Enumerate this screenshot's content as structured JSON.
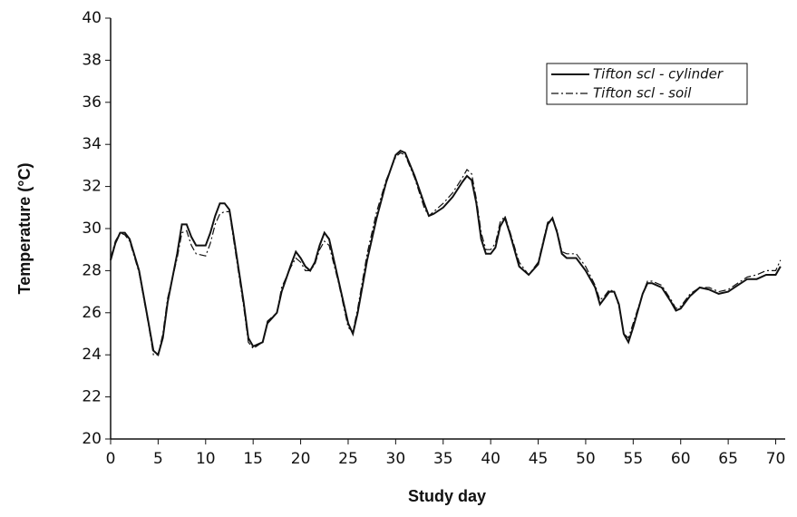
{
  "chart_data": {
    "type": "line",
    "x_label": "Study day",
    "y_label": "Temperature (°C)",
    "x": [
      0,
      0.5,
      1,
      1.5,
      2,
      3,
      4,
      4.5,
      5,
      5.5,
      6,
      7,
      7.5,
      8,
      8.5,
      9,
      10,
      10.5,
      11,
      11.5,
      12,
      12.5,
      13,
      14,
      14.5,
      15,
      16,
      16.5,
      17.5,
      18,
      19,
      19.5,
      20,
      20.5,
      21,
      21.5,
      22,
      22.5,
      23,
      24,
      25,
      25.5,
      26,
      27,
      28,
      29,
      30,
      30.5,
      31,
      32,
      33,
      33.5,
      34,
      35,
      36,
      37,
      37.5,
      38,
      38.5,
      39,
      39.5,
      40,
      40.5,
      41,
      41.5,
      42,
      43,
      44,
      45,
      46,
      46.5,
      47,
      47.5,
      48,
      49,
      50,
      51,
      51.5,
      52,
      52.5,
      53,
      53.5,
      54,
      54.5,
      55,
      56,
      56.5,
      57,
      58,
      59,
      59.5,
      60,
      61,
      62,
      63,
      64,
      65,
      66,
      67,
      68,
      69,
      70,
      70.5
    ],
    "series": [
      {
        "name": "Tifton scl - cylinder",
        "color": "#111111",
        "dash": "solid",
        "values": [
          28.5,
          29.3,
          29.8,
          29.8,
          29.5,
          28.0,
          25.5,
          24.2,
          24.0,
          24.8,
          26.5,
          28.8,
          30.2,
          30.2,
          29.6,
          29.2,
          29.2,
          29.8,
          30.6,
          31.2,
          31.2,
          30.9,
          29.5,
          26.5,
          24.8,
          24.4,
          24.6,
          25.5,
          26.0,
          27.0,
          28.3,
          28.9,
          28.6,
          28.2,
          28.0,
          28.4,
          29.2,
          29.8,
          29.5,
          27.5,
          25.5,
          25.0,
          26.0,
          28.5,
          30.5,
          32.2,
          33.5,
          33.7,
          33.6,
          32.5,
          31.2,
          30.6,
          30.7,
          31.0,
          31.5,
          32.2,
          32.5,
          32.3,
          31.2,
          29.5,
          28.8,
          28.8,
          29.1,
          30.1,
          30.5,
          29.8,
          28.2,
          27.8,
          28.3,
          30.2,
          30.5,
          29.8,
          28.8,
          28.6,
          28.6,
          28.0,
          27.2,
          26.4,
          26.7,
          27.0,
          27.0,
          26.4,
          25.0,
          24.6,
          25.3,
          26.9,
          27.4,
          27.4,
          27.2,
          26.5,
          26.1,
          26.2,
          26.8,
          27.2,
          27.1,
          26.9,
          27.0,
          27.3,
          27.6,
          27.6,
          27.8,
          27.8,
          28.2
        ]
      },
      {
        "name": "Tifton scl - soil",
        "color": "#111111",
        "dash": "dashdot",
        "values": [
          28.6,
          29.4,
          29.8,
          29.7,
          29.4,
          27.9,
          25.4,
          24.0,
          24.0,
          25.0,
          26.7,
          28.6,
          29.8,
          29.9,
          29.2,
          28.8,
          28.7,
          29.3,
          30.2,
          30.7,
          30.8,
          30.8,
          29.3,
          26.3,
          24.6,
          24.3,
          24.6,
          25.6,
          26.0,
          27.2,
          28.2,
          28.6,
          28.4,
          28.0,
          28.0,
          28.3,
          29.0,
          29.4,
          29.2,
          27.4,
          25.3,
          25.1,
          26.2,
          28.8,
          30.8,
          32.3,
          33.4,
          33.6,
          33.5,
          32.4,
          31.0,
          30.6,
          30.8,
          31.2,
          31.7,
          32.4,
          32.8,
          32.6,
          31.4,
          29.8,
          29.0,
          29.0,
          29.3,
          30.3,
          30.6,
          29.9,
          28.4,
          27.8,
          28.4,
          30.3,
          30.4,
          29.9,
          28.9,
          28.8,
          28.8,
          28.2,
          27.3,
          26.6,
          26.8,
          27.1,
          27.0,
          26.3,
          25.0,
          24.8,
          25.5,
          26.9,
          27.5,
          27.5,
          27.3,
          26.6,
          26.2,
          26.3,
          26.9,
          27.2,
          27.2,
          27.0,
          27.1,
          27.4,
          27.7,
          27.8,
          28.0,
          28.0,
          28.5
        ]
      }
    ],
    "xlim": [
      0,
      71
    ],
    "xticks": [
      0,
      5,
      10,
      15,
      20,
      25,
      30,
      35,
      40,
      45,
      50,
      55,
      60,
      65,
      70
    ],
    "ylim": [
      20,
      40
    ],
    "yticks": [
      20,
      22,
      24,
      26,
      28,
      30,
      32,
      34,
      36,
      38,
      40
    ],
    "legend": "top-right",
    "grid": false
  }
}
